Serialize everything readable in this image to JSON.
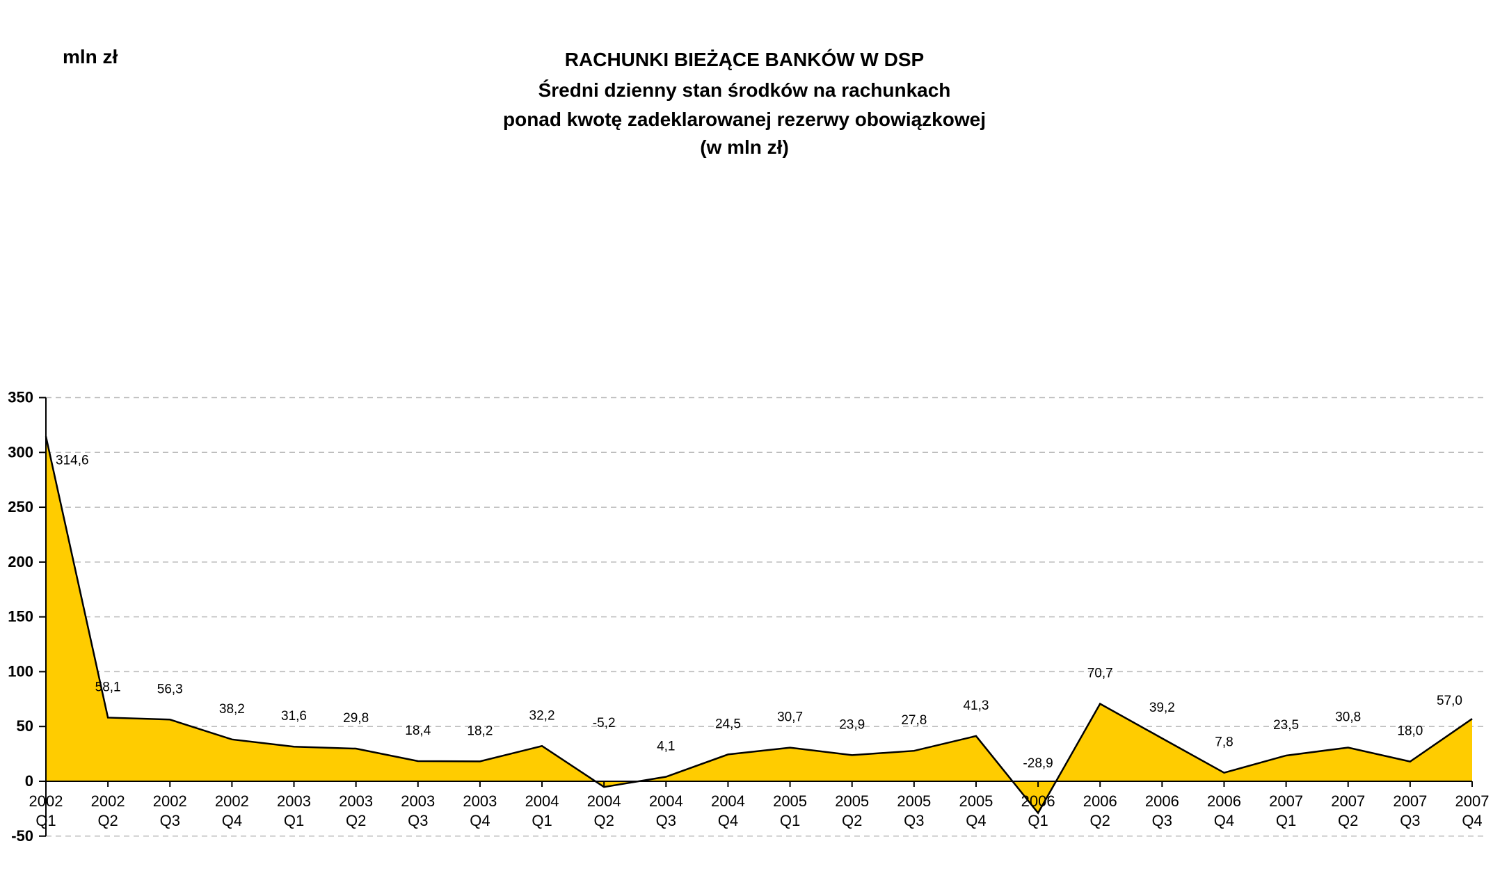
{
  "chart_data": {
    "type": "area",
    "title_lines": [
      "RACHUNKI BIEŻĄCE BANKÓW W DSP",
      "Średni dzienny stan środków na rachunkach",
      "ponad kwotę zadeklarowanej rezerwy obowiązkowej",
      "(w mln zł)"
    ],
    "unit_label": "mln zł",
    "categories": [
      [
        "2002",
        "Q1"
      ],
      [
        "2002",
        "Q2"
      ],
      [
        "2002",
        "Q3"
      ],
      [
        "2002",
        "Q4"
      ],
      [
        "2003",
        "Q1"
      ],
      [
        "2003",
        "Q2"
      ],
      [
        "2003",
        "Q3"
      ],
      [
        "2003",
        "Q4"
      ],
      [
        "2004",
        "Q1"
      ],
      [
        "2004",
        "Q2"
      ],
      [
        "2004",
        "Q3"
      ],
      [
        "2004",
        "Q4"
      ],
      [
        "2005",
        "Q1"
      ],
      [
        "2005",
        "Q2"
      ],
      [
        "2005",
        "Q3"
      ],
      [
        "2005",
        "Q4"
      ],
      [
        "2006",
        "Q1"
      ],
      [
        "2006",
        "Q2"
      ],
      [
        "2006",
        "Q3"
      ],
      [
        "2006",
        "Q4"
      ],
      [
        "2007",
        "Q1"
      ],
      [
        "2007",
        "Q2"
      ],
      [
        "2007",
        "Q3"
      ],
      [
        "2007",
        "Q4"
      ]
    ],
    "values": [
      314.6,
      58.1,
      56.3,
      38.2,
      31.6,
      29.8,
      18.4,
      18.2,
      32.2,
      -5.2,
      4.1,
      24.5,
      30.7,
      23.9,
      27.8,
      41.3,
      -28.9,
      70.7,
      39.2,
      7.8,
      23.5,
      30.8,
      18.0,
      57.0
    ],
    "data_labels": [
      "314,6",
      "58,1",
      "56,3",
      "38,2",
      "31,6",
      "29,8",
      "18,4",
      "18,2",
      "32,2",
      "-5,2",
      "4,1",
      "24,5",
      "30,7",
      "23,9",
      "27,8",
      "41,3",
      "-28,9",
      "70,7",
      "39,2",
      "7,8",
      "23,5",
      "30,8",
      "18,0",
      "57,0"
    ],
    "ylim": [
      -50,
      350
    ],
    "yticks": [
      -50,
      0,
      50,
      100,
      150,
      200,
      250,
      300,
      350
    ],
    "grid": true,
    "colors": {
      "fill": "#FFCC00",
      "line": "#000000",
      "grid": "#bbbbbb"
    }
  }
}
